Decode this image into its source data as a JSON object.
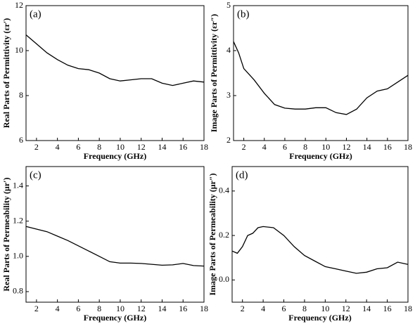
{
  "chart_data": [
    {
      "type": "line",
      "title": "(a)",
      "x_label": "Frequency (GHz)",
      "y_label": "Real Parts of Permittivity (εr′)",
      "color": "#000000",
      "x": [
        1,
        2,
        3,
        4,
        5,
        6,
        7,
        8,
        9,
        10,
        11,
        12,
        13,
        14,
        15,
        16,
        17,
        18
      ],
      "values": [
        10.7,
        10.3,
        9.9,
        9.6,
        9.35,
        9.2,
        9.15,
        9.0,
        8.75,
        8.65,
        8.7,
        8.75,
        8.75,
        8.55,
        8.45,
        8.55,
        8.65,
        8.6
      ],
      "xlim": [
        1,
        18
      ],
      "xticks": [
        2,
        4,
        6,
        8,
        10,
        12,
        14,
        16,
        18
      ],
      "ylim": [
        6,
        12
      ],
      "yticks": [
        6,
        8,
        10,
        12
      ]
    },
    {
      "type": "line",
      "title": "(b)",
      "x_label": "Frequency (GHz)",
      "y_label": "Image Parts of Permittivity (εr″)",
      "color": "#000000",
      "x": [
        1,
        1.5,
        2,
        3,
        4,
        5,
        6,
        7,
        8,
        9,
        10,
        11,
        12,
        13,
        14,
        15,
        16,
        17,
        18
      ],
      "values": [
        4.2,
        3.95,
        3.6,
        3.35,
        3.05,
        2.8,
        2.72,
        2.7,
        2.7,
        2.73,
        2.73,
        2.62,
        2.58,
        2.7,
        2.95,
        3.1,
        3.15,
        3.3,
        3.45
      ],
      "xlim": [
        1,
        18
      ],
      "xticks": [
        2,
        4,
        6,
        8,
        10,
        12,
        14,
        16,
        18
      ],
      "ylim": [
        2,
        5
      ],
      "yticks": [
        2,
        3,
        4,
        5
      ]
    },
    {
      "type": "line",
      "title": "(c)",
      "x_label": "Frequency (GHz)",
      "y_label": "Real Parts of Permeability (μr′)",
      "color": "#000000",
      "x": [
        1,
        2,
        3,
        4,
        5,
        6,
        7,
        8,
        9,
        10,
        11,
        12,
        13,
        14,
        15,
        16,
        17,
        18
      ],
      "values": [
        1.17,
        1.155,
        1.14,
        1.115,
        1.09,
        1.06,
        1.03,
        1.0,
        0.97,
        0.962,
        0.962,
        0.96,
        0.955,
        0.95,
        0.952,
        0.96,
        0.948,
        0.945
      ],
      "xlim": [
        1,
        18
      ],
      "xticks": [
        2,
        4,
        6,
        8,
        10,
        12,
        14,
        16,
        18
      ],
      "ylim": [
        0.74,
        1.51
      ],
      "yticks": [
        0.8,
        {
          "value": 1,
          "label": "1.0"
        },
        1.2,
        1.4
      ]
    },
    {
      "type": "line",
      "title": "(d)",
      "x_label": "Frequency (GHz)",
      "y_label": "Image Parts of Permeability (μr″)",
      "color": "#000000",
      "x": [
        1,
        1.5,
        2,
        2.5,
        3,
        3.5,
        4,
        5,
        6,
        7,
        8,
        9,
        10,
        11,
        12,
        13,
        14,
        15,
        16,
        17,
        18
      ],
      "values": [
        0.13,
        0.12,
        0.15,
        0.2,
        0.21,
        0.235,
        0.24,
        0.235,
        0.2,
        0.15,
        0.11,
        0.085,
        0.06,
        0.05,
        0.04,
        0.03,
        0.035,
        0.05,
        0.055,
        0.08,
        0.07
      ],
      "xlim": [
        1,
        18
      ],
      "xticks": [
        2,
        4,
        6,
        8,
        10,
        12,
        14,
        16,
        18
      ],
      "ylim": [
        -0.1,
        0.51
      ],
      "yticks": [
        {
          "value": 0,
          "label": "0.0"
        },
        0.2,
        0.4
      ]
    }
  ]
}
